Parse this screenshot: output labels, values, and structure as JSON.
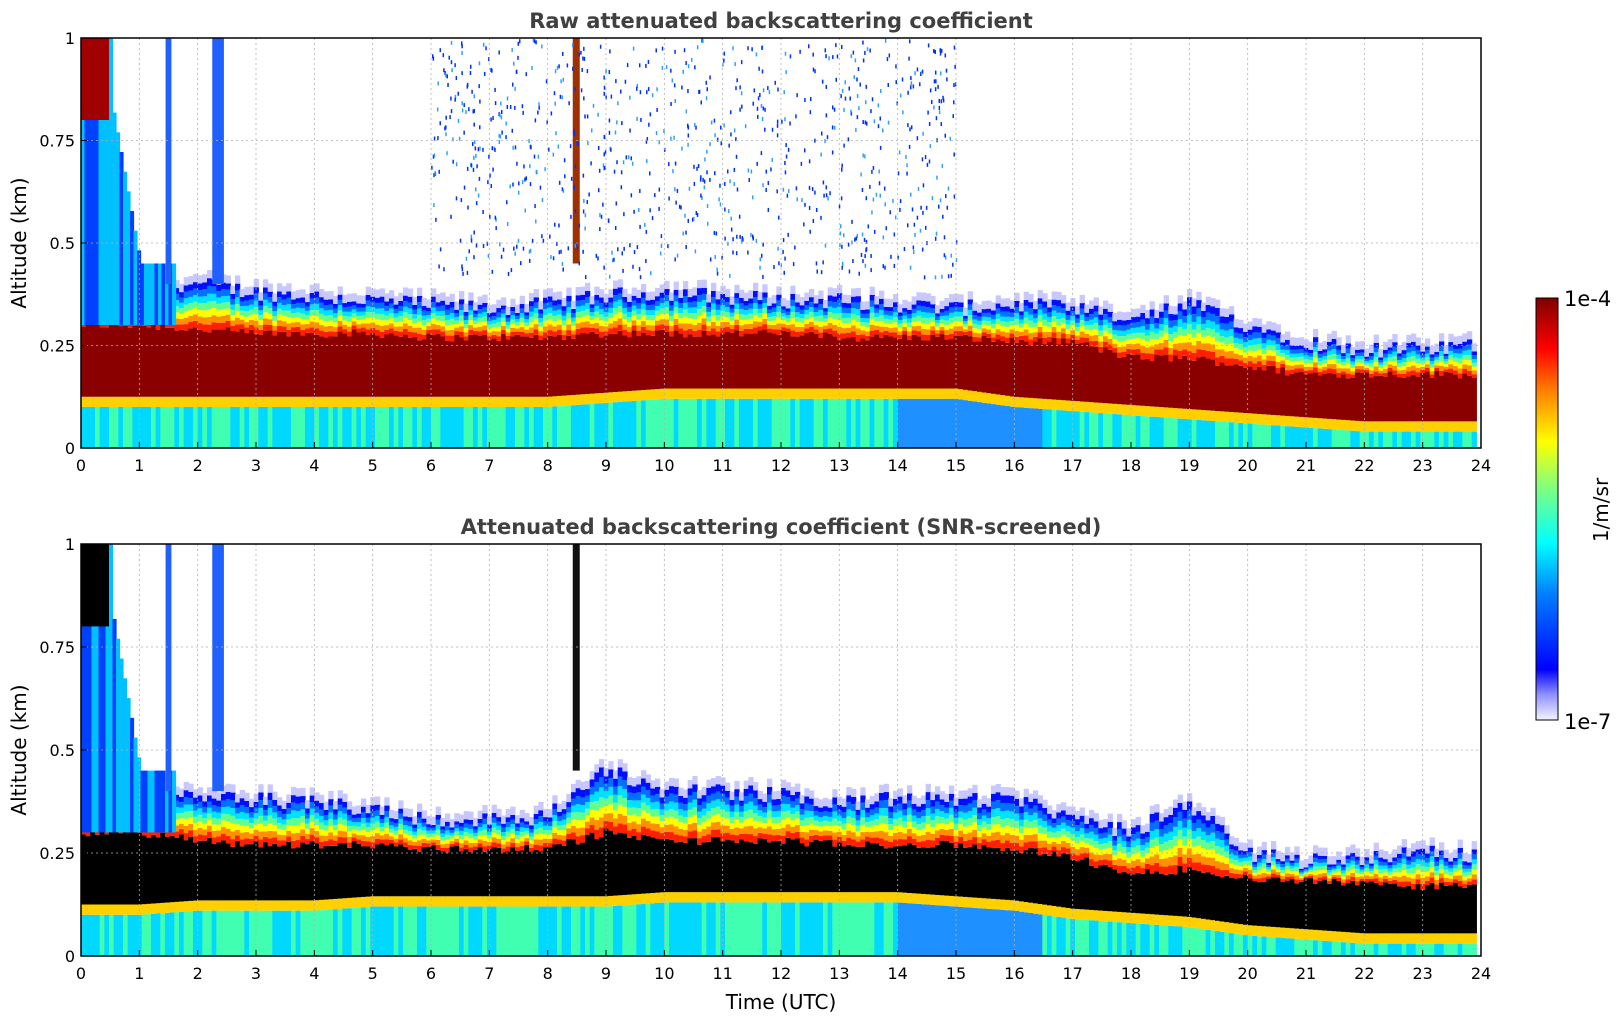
{
  "chart_data": [
    {
      "type": "heatmap",
      "title": "Raw attenuated backscattering coefficient",
      "xlabel": "",
      "ylabel": "Altitude (km)",
      "xlim": [
        0,
        24
      ],
      "ylim": [
        0,
        1
      ],
      "x_ticks": [
        "0",
        "1",
        "2",
        "3",
        "4",
        "5",
        "6",
        "7",
        "8",
        "9",
        "10",
        "11",
        "12",
        "13",
        "14",
        "15",
        "16",
        "17",
        "18",
        "19",
        "20",
        "21",
        "22",
        "23",
        "24"
      ],
      "y_ticks": [
        "0",
        "0.25",
        "0.5",
        "0.75",
        "1"
      ],
      "grid": true,
      "series": [
        {
          "layer_top_km": [
            0.42,
            0.4,
            0.4,
            0.38,
            0.37,
            0.36,
            0.35,
            0.34,
            0.35,
            0.37,
            0.38,
            0.37,
            0.36,
            0.36,
            0.35,
            0.34,
            0.35,
            0.34,
            0.31,
            0.35,
            0.3,
            0.26,
            0.24,
            0.24,
            0.25
          ],
          "layer_core_top_km": [
            0.3,
            0.3,
            0.29,
            0.28,
            0.28,
            0.28,
            0.27,
            0.27,
            0.27,
            0.28,
            0.28,
            0.28,
            0.28,
            0.27,
            0.27,
            0.27,
            0.26,
            0.26,
            0.22,
            0.22,
            0.2,
            0.18,
            0.18,
            0.18,
            0.18
          ],
          "layer_core_bottom_km": [
            0.1,
            0.1,
            0.1,
            0.1,
            0.1,
            0.1,
            0.1,
            0.1,
            0.1,
            0.11,
            0.12,
            0.12,
            0.12,
            0.12,
            0.12,
            0.12,
            0.1,
            0.09,
            0.08,
            0.07,
            0.06,
            0.05,
            0.04,
            0.04,
            0.04
          ]
        }
      ],
      "colorbar": {
        "label": "1/m/sr",
        "max": "1e-4",
        "min": "1e-7",
        "colormap": "jet"
      }
    },
    {
      "type": "heatmap",
      "title": "Attenuated backscattering coefficient (SNR-screened)",
      "xlabel": "Time (UTC)",
      "ylabel": "Altitude (km)",
      "xlim": [
        0,
        24
      ],
      "ylim": [
        0,
        1
      ],
      "x_ticks": [
        "0",
        "1",
        "2",
        "3",
        "4",
        "5",
        "6",
        "7",
        "8",
        "9",
        "10",
        "11",
        "12",
        "13",
        "14",
        "15",
        "16",
        "17",
        "18",
        "19",
        "20",
        "21",
        "22",
        "23",
        "24"
      ],
      "y_ticks": [
        "0",
        "0.25",
        "0.5",
        "0.75",
        "1"
      ],
      "grid": true,
      "series": [
        {
          "layer_top_km": [
            0.45,
            0.4,
            0.38,
            0.38,
            0.37,
            0.36,
            0.33,
            0.33,
            0.34,
            0.45,
            0.4,
            0.4,
            0.39,
            0.37,
            0.38,
            0.38,
            0.38,
            0.33,
            0.3,
            0.37,
            0.25,
            0.23,
            0.24,
            0.25,
            0.24
          ],
          "saturated_top_km": [
            0.3,
            0.3,
            0.28,
            0.27,
            0.27,
            0.27,
            0.26,
            0.26,
            0.26,
            0.3,
            0.28,
            0.28,
            0.28,
            0.27,
            0.27,
            0.27,
            0.26,
            0.24,
            0.2,
            0.21,
            0.19,
            0.18,
            0.18,
            0.17,
            0.17
          ],
          "saturated_bottom_km": [
            0.1,
            0.1,
            0.11,
            0.11,
            0.11,
            0.12,
            0.12,
            0.12,
            0.12,
            0.12,
            0.13,
            0.13,
            0.13,
            0.13,
            0.13,
            0.12,
            0.11,
            0.09,
            0.08,
            0.07,
            0.05,
            0.04,
            0.03,
            0.03,
            0.03
          ]
        }
      ]
    }
  ]
}
